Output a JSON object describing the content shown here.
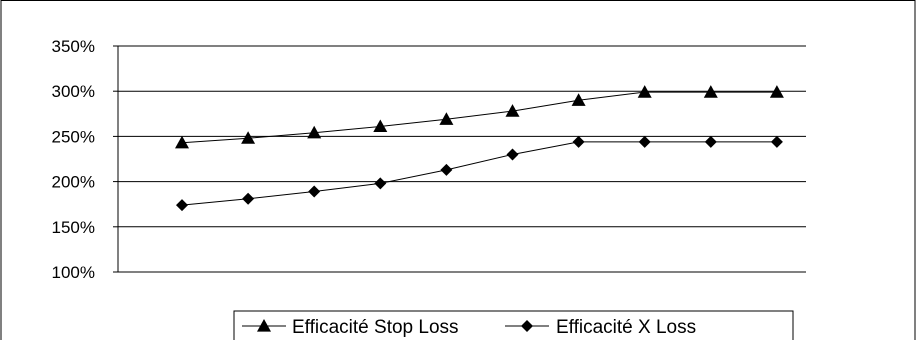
{
  "chart_data": {
    "type": "line",
    "title": "",
    "xlabel": "",
    "ylabel": "",
    "ylim": [
      1.0,
      3.5
    ],
    "yticks": [
      1.0,
      1.5,
      2.0,
      2.5,
      3.0,
      3.5
    ],
    "ytick_labels": [
      "100%",
      "150%",
      "200%",
      "250%",
      "300%",
      "350%"
    ],
    "grid": true,
    "legend_position": "bottom",
    "x": [
      1,
      2,
      3,
      4,
      5,
      6,
      7,
      8,
      9,
      10
    ],
    "series": [
      {
        "name": "Efficacité Stop Loss",
        "marker": "triangle",
        "color": "#000000",
        "values": [
          2.43,
          2.48,
          2.54,
          2.61,
          2.69,
          2.78,
          2.9,
          2.99,
          2.99,
          2.99
        ]
      },
      {
        "name": "Efficacité X Loss",
        "marker": "diamond",
        "color": "#000000",
        "values": [
          1.74,
          1.81,
          1.89,
          1.98,
          2.13,
          2.3,
          2.44,
          2.44,
          2.44,
          2.44
        ]
      }
    ]
  }
}
